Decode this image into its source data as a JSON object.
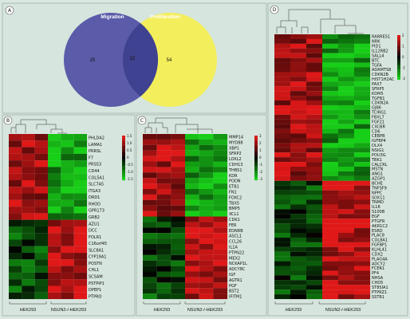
{
  "panels": {
    "A": {
      "letter": "A",
      "migration_label": "Migration",
      "proliferation_label": "Proliferation",
      "only_migration": "25",
      "overlap": "32",
      "only_proliferation": "54"
    },
    "B": {
      "letter": "B",
      "group_left": "HEK293",
      "group_right": "NSUN2-/-HEK293",
      "legend_ticks": [
        "1.5",
        "1.0",
        "0.5",
        "0",
        "-0.5",
        "-1.0",
        "-1.5"
      ],
      "genes": [
        "PHLDA2",
        "LAMA1",
        "PRRSL",
        "F7",
        "PRSS3",
        "CD44",
        "COL5A1",
        "SLC7A5",
        "ITGA3",
        "DRD1",
        "RHOD",
        "GPR173",
        "GRB2",
        "AZU1",
        "DCC",
        "FOLR1",
        "C16orf45",
        "SLC8A1",
        "CYP19A1",
        "POSTN",
        "CHL1",
        "SCSAM",
        "PSTPIP1",
        "DPEP1",
        "PTPRO"
      ]
    },
    "C": {
      "letter": "C",
      "group_left": "HEK293",
      "group_right": "NSUN2-/-HEK293",
      "legend_ticks": [
        "3",
        "2",
        "1",
        "0",
        "-1",
        "-2",
        "-3"
      ],
      "genes": [
        "MMP14",
        "MYD88",
        "XBP1",
        "SFRP2",
        "LOXL2",
        "CDH13",
        "THBS1",
        "KDR",
        "PODN",
        "ETB1",
        "FN1",
        "FOXC2",
        "TBX5",
        "BMP5",
        "XCL1",
        "CDK1",
        "FER",
        "EDNRB",
        "ASCL1",
        "CCL26",
        "IL1A",
        "PTPN22",
        "MEX2",
        "NCKAP1L",
        "ADCY8C",
        "IGF",
        "AGTR1",
        "PGF",
        "BST2",
        "IFITM1"
      ]
    },
    "D": {
      "letter": "D",
      "group_left": "HEK293",
      "group_right": "NSUN2-/-HEK293",
      "legend_ticks": [
        "2",
        "1",
        "0",
        "-1",
        "-2"
      ],
      "genes": [
        "RARRES1",
        "NRK",
        "PID1",
        "IL12RB2",
        "SALL4",
        "BTC",
        "TGFA",
        "ADAMTS8",
        "CDKN2B",
        "HIST1H2AC",
        "PAX7",
        "SFRP5",
        "KDM5",
        "TGFB1",
        "CDKN2A",
        "GJB6",
        "TCIRG1",
        "FBXL7",
        "FGF21",
        "CXCBR",
        "CD6",
        "CEBPB",
        "IGFBP4",
        "DLX4",
        "NSIG1",
        "POU3G",
        "TBK1",
        "CALCRL",
        "MSTN",
        "ANG1",
        "AZGP1",
        "BCHE",
        "TNFSF9",
        "NPPC",
        "SOX11",
        "TNMD",
        "IL18",
        "S100B",
        "EGF",
        "PTGFR",
        "AKR1C2",
        "ESRD",
        "PLAC8",
        "COL8A1",
        "FGFBP1",
        "KLHL41",
        "CDX2",
        "PLAG4A",
        "ADCY2",
        "FCER1",
        "PF4",
        "NHSA",
        "CHD5",
        "ST8SIA1",
        "PTPRZ1",
        "SSTR1"
      ]
    }
  },
  "colors": {
    "background": "#dbe8e1",
    "migration": "#5555a8",
    "proliferation": "#f3ee5c",
    "high": "#e01818",
    "low": "#18cf18",
    "mid": "#000000"
  }
}
